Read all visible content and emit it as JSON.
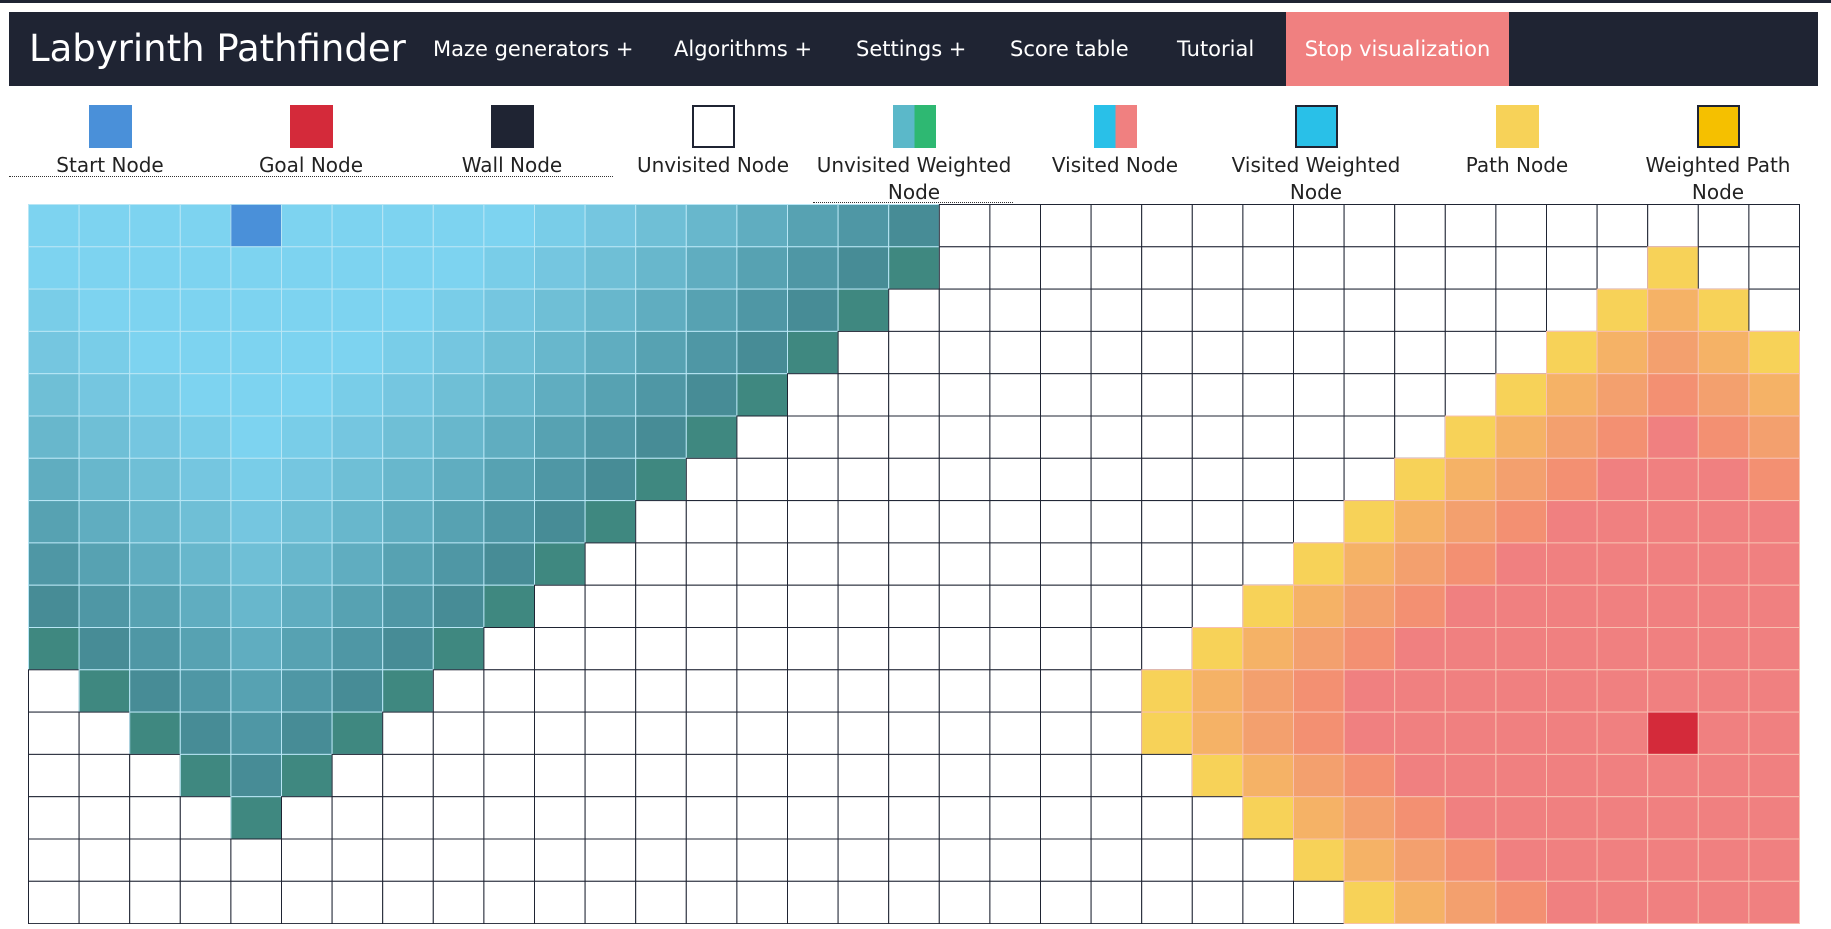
{
  "nav": {
    "title": "Labyrinth Pathfinder",
    "items": [
      "Maze generators +",
      "Algorithms +",
      "Settings +",
      "Score table",
      "Tutorial"
    ],
    "action": "Stop visualization"
  },
  "legend": [
    "Start Node",
    "Goal Node",
    "Wall Node",
    "Unvisited Node",
    "Unvisited Weighted Node",
    "Visited Node",
    "Visited Weighted Node",
    "Path Node",
    "Weighted Path Node"
  ]
}
